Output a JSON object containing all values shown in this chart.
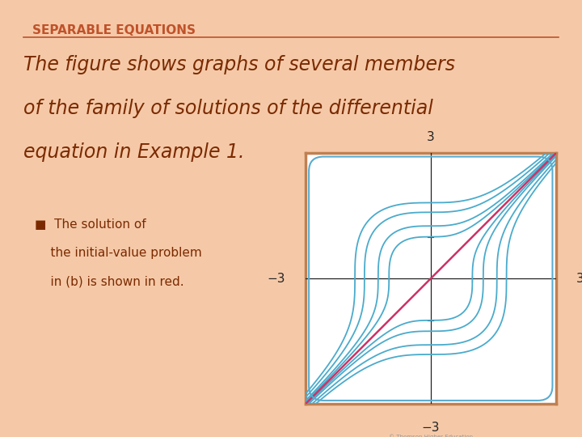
{
  "title": "SEPARABLE EQUATIONS",
  "title_color": "#C0522A",
  "bg_color": "#F5C9A8",
  "text_line1": "The figure shows graphs of several members",
  "text_line2": "of the family of solutions of the differential",
  "text_line3": "equation in Example 1.",
  "text_color": "#7B2A00",
  "bullet_text": [
    "■  The solution of",
    "    the initial-value problem",
    "    in (b) is shown in red."
  ],
  "plot_bg": "#FFFFFF",
  "curve_color": "#4AABCC",
  "red_curve_color": "#CC3366",
  "axis_color": "#222222",
  "border_color": "#C08050",
  "inner_border_color": "#5AACCF",
  "C_values": [
    -6,
    -4,
    -2,
    -1,
    0,
    1,
    2,
    4,
    6
  ],
  "C_red": 0,
  "xlim": [
    -3,
    3
  ],
  "ylim": [
    -3,
    3
  ],
  "tick_labels": {
    "top": "3",
    "bottom": "−3",
    "left": "−3",
    "right": "3"
  }
}
